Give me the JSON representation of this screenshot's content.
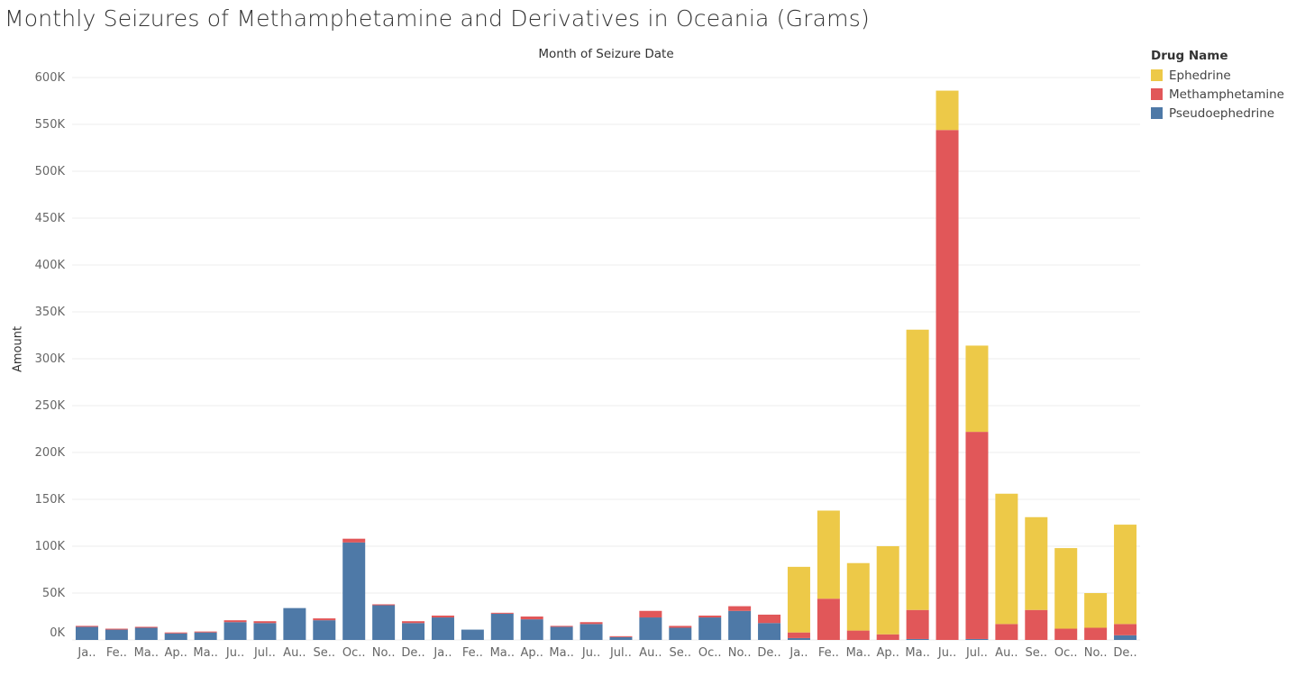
{
  "title": "Monthly Seizures of Methamphetamine and Derivatives in Oceania (Grams)",
  "chart_data": {
    "type": "bar",
    "stacked": true,
    "column_header": "Month of Seizure Date",
    "ylabel": "Amount",
    "ylim": [
      0,
      600000
    ],
    "y_ticks": [
      "0K",
      "50K",
      "100K",
      "150K",
      "200K",
      "250K",
      "300K",
      "350K",
      "400K",
      "450K",
      "500K",
      "550K",
      "600K"
    ],
    "grid": true,
    "legend_position": "top-right",
    "categories": [
      "Ja..",
      "Fe..",
      "Ma..",
      "Ap..",
      "Ma..",
      "Ju..",
      "Jul..",
      "Au..",
      "Se..",
      "Oc..",
      "No..",
      "De..",
      "Ja..",
      "Fe..",
      "Ma..",
      "Ap..",
      "Ma..",
      "Ju..",
      "Jul..",
      "Au..",
      "Se..",
      "Oc..",
      "No..",
      "De..",
      "Ja..",
      "Fe..",
      "Ma..",
      "Ap..",
      "Ma..",
      "Ju..",
      "Jul..",
      "Au..",
      "Se..",
      "Oc..",
      "No..",
      "De.."
    ],
    "series": [
      {
        "name": "Pseudoephedrine",
        "color": "#4e79a7",
        "values": [
          14000,
          11000,
          13000,
          7000,
          8000,
          19000,
          18000,
          34000,
          21000,
          104000,
          37000,
          18000,
          24000,
          11000,
          28000,
          22000,
          14000,
          17000,
          3000,
          24000,
          13000,
          24000,
          31000,
          18000,
          2000,
          0,
          0,
          0,
          1000,
          0,
          1000,
          0,
          0,
          0,
          0,
          5000
        ]
      },
      {
        "name": "Methamphetamine",
        "color": "#e15759",
        "values": [
          1000,
          1000,
          1000,
          1000,
          1000,
          2000,
          2000,
          0,
          2000,
          4000,
          1000,
          2000,
          2000,
          0,
          1000,
          3000,
          1000,
          2000,
          1000,
          7000,
          2000,
          2000,
          5000,
          9000,
          6000,
          44000,
          10000,
          6000,
          31000,
          544000,
          221000,
          17000,
          32000,
          12000,
          13000,
          12000
        ]
      },
      {
        "name": "Ephedrine",
        "color": "#edc948",
        "values": [
          0,
          0,
          0,
          0,
          0,
          0,
          0,
          0,
          0,
          0,
          0,
          0,
          0,
          0,
          0,
          0,
          0,
          0,
          0,
          0,
          0,
          0,
          0,
          0,
          70000,
          94000,
          72000,
          94000,
          299000,
          42000,
          92000,
          139000,
          99000,
          86000,
          37000,
          106000
        ]
      }
    ]
  }
}
